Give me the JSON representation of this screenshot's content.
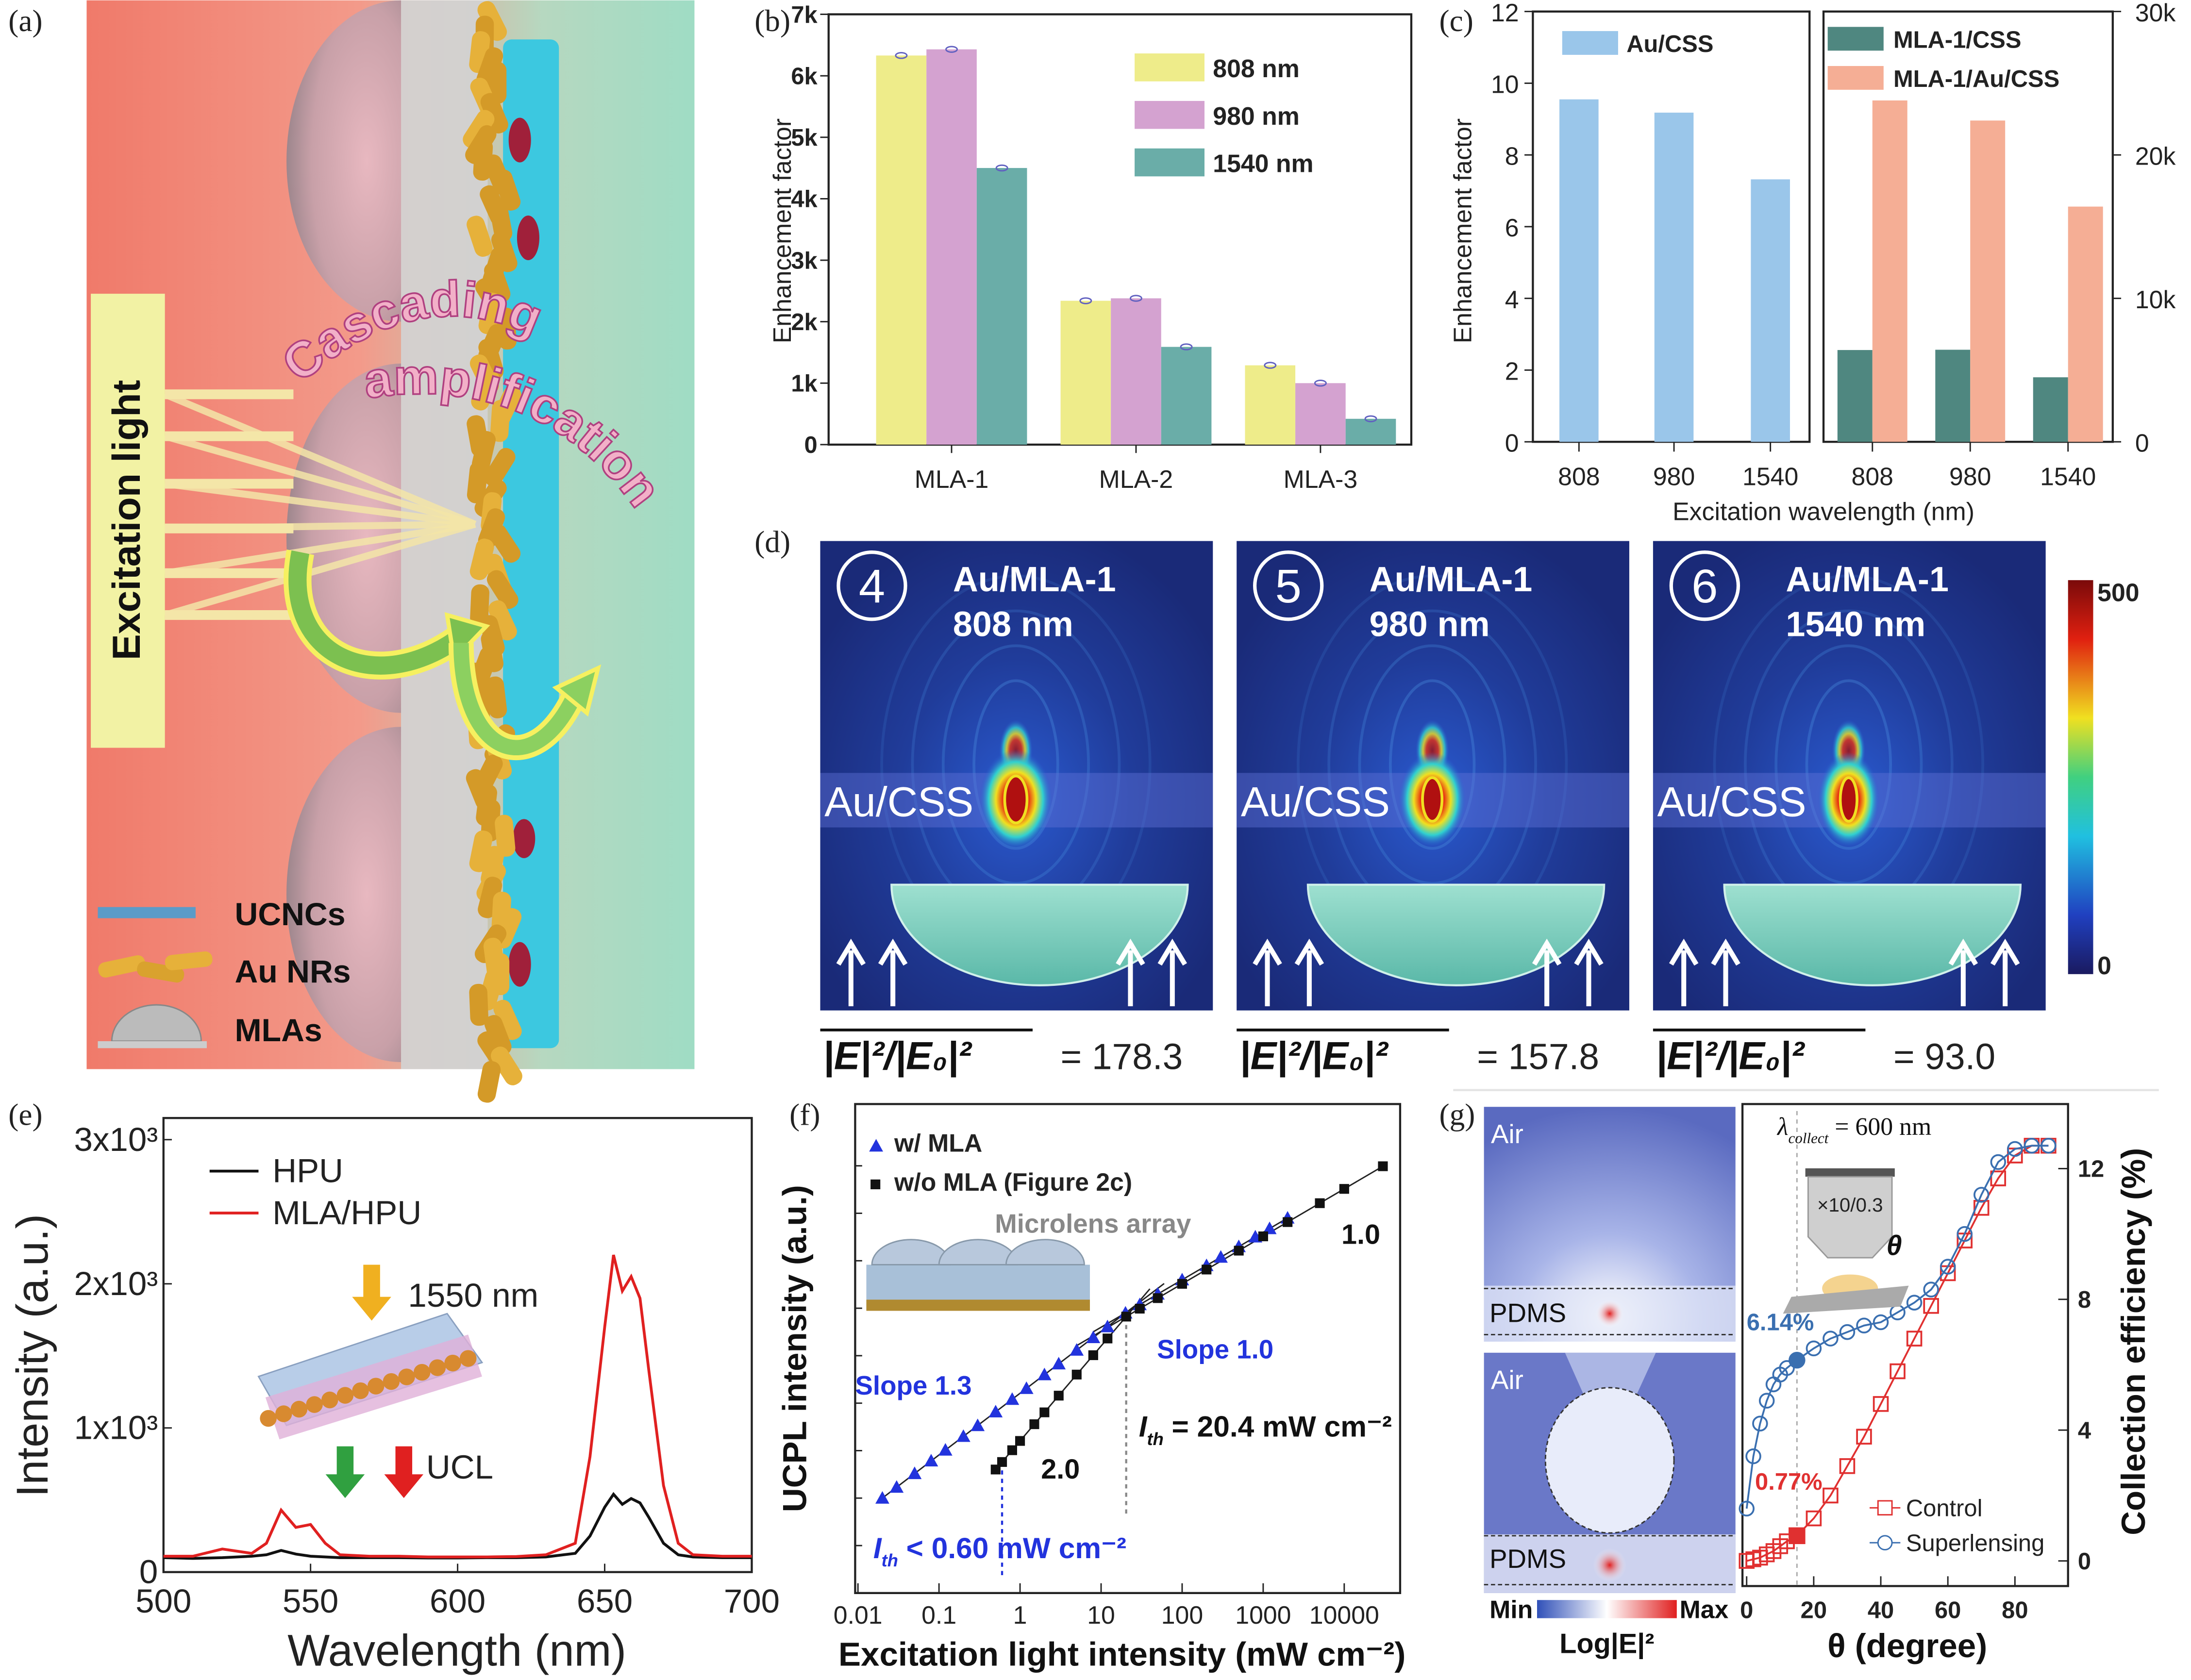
{
  "panel_labels": {
    "a": "(a)",
    "b": "(b)",
    "c": "(c)",
    "d": "(d)",
    "e": "(e)",
    "f": "(f)",
    "g": "(g)"
  },
  "panel_a": {
    "excitation_label": "Excitation light",
    "cascading_line1": "Cascading",
    "cascading_line2": "amplification",
    "legend": [
      {
        "label": "UCNCs"
      },
      {
        "label": "Au NRs"
      },
      {
        "label": "MLAs"
      }
    ],
    "colors": {
      "ucncs": "#5b9bc8",
      "au_nrs": "#e6b13a",
      "cyan_layer": "#3cc8e0"
    }
  },
  "panel_d": {
    "maps": [
      {
        "number": "4",
        "title": "Au/MLA-1",
        "wavelength": "808 nm",
        "layer_label": "Au/CSS",
        "formula_value": "= 178.3"
      },
      {
        "number": "5",
        "title": "Au/MLA-1",
        "wavelength": "980 nm",
        "layer_label": "Au/CSS",
        "formula_value": "= 157.8"
      },
      {
        "number": "6",
        "title": "Au/MLA-1",
        "wavelength": "1540 nm",
        "layer_label": "Au/CSS",
        "formula_value": "= 93.0"
      }
    ],
    "formula_lhs": "|E|²/|E₀|²",
    "colorbar": {
      "max": "500",
      "min": "0"
    }
  },
  "panel_e_inset": {
    "excitation": "1550 nm",
    "emission": "UCL"
  },
  "panel_f_inset": {
    "label": "Microlens array"
  },
  "panel_f_annotations": {
    "slope_blue_low": "Slope 1.3",
    "slope_blue_high": "Slope 1.0",
    "slope_black_low": "2.0",
    "slope_black_high": "1.0",
    "ith_black": "I",
    "ith_black_sub": "th",
    "ith_black_value": " = 20.4 mW cm⁻²",
    "ith_blue": "I",
    "ith_blue_sub": "th",
    "ith_blue_value": " < 0.60 mW cm⁻²"
  },
  "panel_g_maps": {
    "top_air": "Air",
    "top_pdms": "PDMS",
    "bottom_air": "Air",
    "bottom_pdms": "PDMS",
    "colorbar_min": "Min",
    "colorbar_max": "Max",
    "colorbar_label": "Log|E|²"
  },
  "panel_g_annotations": {
    "lambda": "λ",
    "lambda_sub": "collect",
    "lambda_value": " = 600 nm",
    "objective": "×10/0.3",
    "theta": "θ",
    "superlensing_value": "6.14%",
    "control_value": "0.77%"
  },
  "chart_data": [
    {
      "panel": "b",
      "type": "bar",
      "categories": [
        "MLA-1",
        "MLA-2",
        "MLA-3"
      ],
      "series": [
        {
          "name": "808 nm",
          "color": "#eeec8a",
          "values": [
            6330,
            2340,
            1290
          ]
        },
        {
          "name": "980 nm",
          "color": "#d4a2d0",
          "values": [
            6430,
            2380,
            1000
          ]
        },
        {
          "name": "1540 nm",
          "color": "#6aada8",
          "values": [
            4500,
            1590,
            420
          ]
        }
      ],
      "ylabel": "Enhancement factor",
      "xlabel": "",
      "ylim": [
        0,
        7000
      ],
      "yticks": [
        0,
        1000,
        2000,
        3000,
        4000,
        5000,
        6000,
        7000
      ],
      "ytick_labels": [
        "0",
        "1k",
        "2k",
        "3k",
        "4k",
        "5k",
        "6k",
        "7k"
      ],
      "legend": "top-right"
    },
    {
      "panel": "c",
      "type": "bar",
      "categories": [
        "808",
        "980",
        "1540"
      ],
      "left": {
        "series": [
          {
            "name": "Au/CSS",
            "color": "#9ac6ea",
            "values": [
              9.55,
              9.18,
              7.32
            ]
          }
        ],
        "ylim": [
          0,
          12
        ],
        "yticks": [
          0,
          2,
          4,
          6,
          8,
          10,
          12
        ],
        "ytick_labels": [
          "0",
          "2",
          "4",
          "6",
          "8",
          "10",
          "12"
        ]
      },
      "right": {
        "series": [
          {
            "name": "MLA-1/CSS",
            "color": "#4f8780",
            "values": [
              6400,
              6420,
              4500
            ]
          },
          {
            "name": "MLA-1/Au/CSS",
            "color": "#f5ae95",
            "values": [
              23800,
              22400,
              16400
            ]
          }
        ],
        "ylim": [
          0,
          30000
        ],
        "yticks": [
          0,
          10000,
          20000,
          30000
        ],
        "ytick_labels": [
          "0",
          "10k",
          "20k",
          "30k"
        ]
      },
      "ylabel": "Enhancement factor",
      "xlabel": "Excitation wavelength (nm)"
    },
    {
      "panel": "e",
      "type": "line",
      "x": [
        500,
        510,
        520,
        530,
        535,
        540,
        545,
        550,
        555,
        560,
        570,
        580,
        590,
        600,
        610,
        620,
        630,
        640,
        645,
        650,
        653,
        656,
        659,
        662,
        665,
        670,
        675,
        680,
        690,
        700
      ],
      "series": [
        {
          "name": "HPU",
          "color": "#111111",
          "values": [
            100,
            95,
            100,
            110,
            120,
            150,
            125,
            110,
            105,
            100,
            100,
            100,
            98,
            98,
            100,
            100,
            105,
            130,
            250,
            450,
            540,
            470,
            510,
            480,
            380,
            200,
            120,
            105,
            100,
            100
          ]
        },
        {
          "name": "MLA/HPU",
          "color": "#e02020",
          "values": [
            110,
            110,
            160,
            130,
            200,
            430,
            310,
            330,
            200,
            120,
            110,
            110,
            105,
            105,
            105,
            108,
            120,
            200,
            800,
            1700,
            2200,
            1950,
            2050,
            1900,
            1400,
            600,
            200,
            120,
            110,
            110
          ]
        }
      ],
      "xlabel": "Wavelength (nm)",
      "ylabel": "Intensity (a.u.)",
      "xlim": [
        500,
        700
      ],
      "ylim": [
        0,
        3150
      ],
      "xticks": [
        500,
        550,
        600,
        650,
        700
      ],
      "xtick_labels": [
        "500",
        "550",
        "600",
        "650",
        "700"
      ],
      "yticks": [
        0,
        1000,
        2000,
        3000
      ],
      "ytick_labels": [
        "0",
        "1x10³",
        "2x10³",
        "3x10³"
      ],
      "legend": "top-left"
    },
    {
      "panel": "f",
      "type": "scatter",
      "series": [
        {
          "name": "w/ MLA",
          "color": "#2233dd",
          "marker": "triangle",
          "x": [
            0.02,
            0.03,
            0.05,
            0.08,
            0.12,
            0.2,
            0.3,
            0.5,
            0.8,
            1.2,
            2,
            3,
            5,
            8,
            12,
            20,
            30,
            50,
            100,
            200,
            300,
            500,
            800,
            1200,
            2000
          ],
          "y": [
            10,
            17,
            33,
            61,
            103,
            200,
            338,
            657,
            1207,
            2045,
            3981,
            6745,
            13110,
            24090,
            40830,
            79430,
            119000,
            199000,
            397000,
            794000,
            1190000,
            1990000,
            3180000,
            4770000,
            7940000
          ]
        },
        {
          "name": "w/o MLA (Figure 2c)",
          "color": "#111111",
          "marker": "square",
          "x": [
            0.5,
            0.6,
            0.8,
            1,
            1.5,
            2,
            3,
            5,
            8,
            12,
            20.4,
            30,
            50,
            100,
            200,
            500,
            1000,
            2000,
            5000,
            10000,
            30000
          ],
          "y": [
            40,
            57.6,
            102,
            160,
            360,
            640,
            1440,
            4000,
            10240,
            23040,
            66586,
            97900,
            163200,
            326400,
            652800,
            1632000,
            3264000,
            6528000,
            16320000,
            32640000,
            97920000
          ]
        }
      ],
      "xlabel": "Excitation light intensity (mW cm⁻²)",
      "ylabel": "UCPL intensity (a.u.)",
      "xscale": "log",
      "yscale": "log",
      "xlim": [
        0.01,
        40000
      ],
      "ylim": [
        0.1,
        2000000000
      ],
      "xticks": [
        0.01,
        0.1,
        1,
        10,
        100,
        1000,
        10000
      ],
      "xtick_labels": [
        "0.01",
        "0.1",
        "1",
        "10",
        "100",
        "1000",
        "10000"
      ],
      "legend": "top-left"
    },
    {
      "panel": "g",
      "type": "line",
      "x": [
        0,
        2,
        4,
        6,
        8,
        10,
        12,
        15,
        20,
        25,
        30,
        35,
        40,
        45,
        50,
        55,
        60,
        65,
        70,
        75,
        80,
        85,
        90
      ],
      "series": [
        {
          "name": "Control",
          "color": "#e03030",
          "marker": "square",
          "values": [
            0,
            0.05,
            0.1,
            0.2,
            0.3,
            0.45,
            0.6,
            0.77,
            1.3,
            2.0,
            2.9,
            3.8,
            4.8,
            5.8,
            6.8,
            7.8,
            8.8,
            9.8,
            10.8,
            11.7,
            12.4,
            12.7,
            12.7
          ]
        },
        {
          "name": "Superlensing",
          "color": "#3a6fb0",
          "marker": "circle",
          "values": [
            1.6,
            3.2,
            4.2,
            4.9,
            5.4,
            5.7,
            5.9,
            6.14,
            6.5,
            6.8,
            7.0,
            7.2,
            7.3,
            7.6,
            7.9,
            8.3,
            9.0,
            10.0,
            11.2,
            12.2,
            12.6,
            12.7,
            12.7
          ]
        }
      ],
      "xlabel": "θ (degree)",
      "ylabel": "Collection efficiency (%)",
      "xlim": [
        -1,
        93
      ],
      "ylim": [
        -0.8,
        13.2
      ],
      "xticks": [
        0,
        20,
        40,
        60,
        80
      ],
      "xtick_labels": [
        "0",
        "20",
        "40",
        "60",
        "80"
      ],
      "yticks": [
        0,
        4,
        8,
        12
      ],
      "ytick_labels": [
        "0",
        "4",
        "8",
        "12"
      ],
      "legend": "bottom-right"
    }
  ]
}
